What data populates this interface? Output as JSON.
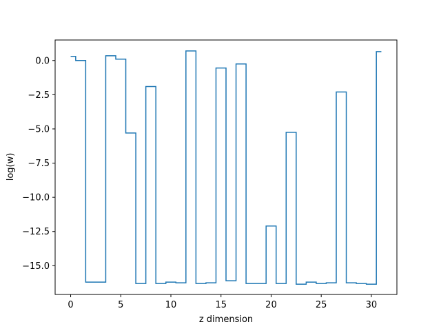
{
  "chart_data": {
    "type": "line",
    "drawstyle": "steps-mid",
    "title": "",
    "xlabel": "z dimension",
    "ylabel": "log(w)",
    "xlim": [
      -1.55,
      32.55
    ],
    "ylim": [
      -17.1,
      1.5
    ],
    "xticks": [
      0,
      5,
      10,
      15,
      20,
      25,
      30
    ],
    "yticks": [
      0.0,
      -2.5,
      -5.0,
      -7.5,
      -10.0,
      -12.5,
      -15.0
    ],
    "ytick_labels": [
      "0.0",
      "−2.5",
      "−5.0",
      "−7.5",
      "−10.0",
      "−12.5",
      "−15.0"
    ],
    "grid": false,
    "line_color": "#1f77b4",
    "series": [
      {
        "x": [
          0,
          1,
          2,
          3,
          4,
          5,
          6,
          7,
          8,
          9,
          10,
          11,
          12,
          13,
          14,
          15,
          16,
          17,
          18,
          19,
          20,
          21,
          22,
          23,
          24,
          25,
          26,
          27,
          28,
          29,
          30,
          31
        ],
        "values": [
          0.3,
          0.0,
          -16.2,
          -16.2,
          0.35,
          0.1,
          -5.3,
          -16.3,
          -1.9,
          -16.3,
          -16.2,
          -16.25,
          0.7,
          -16.3,
          -16.25,
          -0.55,
          -16.1,
          -0.25,
          -16.3,
          -16.3,
          -12.1,
          -16.3,
          -5.25,
          -16.35,
          -16.2,
          -16.3,
          -16.25,
          -2.3,
          -16.25,
          -16.3,
          -16.35,
          0.65
        ]
      }
    ]
  }
}
